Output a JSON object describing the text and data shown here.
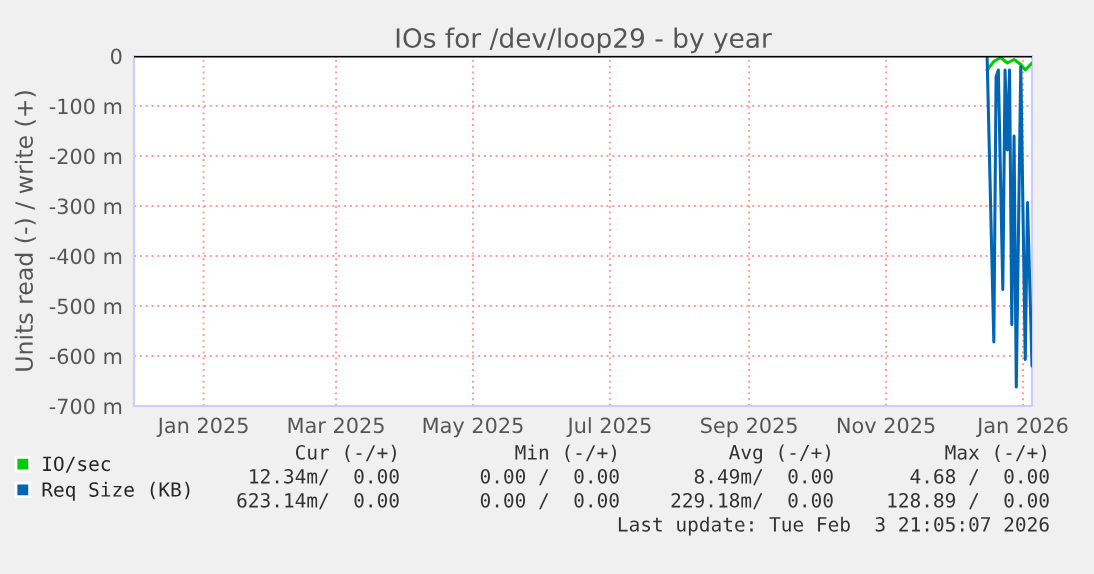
{
  "chart_data": {
    "type": "line",
    "title": "IOs for /dev/loop29 - by year",
    "ylabel": "Units read (-) / write (+)",
    "xlim": [
      "2024-12-01",
      "2026-01-05"
    ],
    "xticks": [
      {
        "value": "2025-01-01",
        "label": "Jan 2025"
      },
      {
        "value": "2025-03-01",
        "label": "Mar 2025"
      },
      {
        "value": "2025-05-01",
        "label": "May 2025"
      },
      {
        "value": "2025-07-01",
        "label": "Jul 2025"
      },
      {
        "value": "2025-09-01",
        "label": "Sep 2025"
      },
      {
        "value": "2025-11-01",
        "label": "Nov 2025"
      },
      {
        "value": "2026-01-01",
        "label": "Jan 2026"
      }
    ],
    "ylim": [
      -700,
      0
    ],
    "yticks": [
      {
        "value": 0,
        "label": "0"
      },
      {
        "value": -100,
        "label": "-100 m"
      },
      {
        "value": -200,
        "label": "-200 m"
      },
      {
        "value": -300,
        "label": "-300 m"
      },
      {
        "value": -400,
        "label": "-400 m"
      },
      {
        "value": -500,
        "label": "-500 m"
      },
      {
        "value": -600,
        "label": "-600 m"
      },
      {
        "value": -700,
        "label": "-700 m"
      }
    ],
    "grid": true,
    "legend": "bottom left",
    "ref_lines": [
      {
        "axis": "y",
        "value": 0,
        "color": "#000000"
      }
    ],
    "series": [
      {
        "name": "IO/sec",
        "color": "#00cc00",
        "x": [
          "2025-12-16",
          "2025-12-19",
          "2025-12-22",
          "2025-12-25",
          "2025-12-28",
          "2025-12-31",
          "2026-01-02",
          "2026-01-05"
        ],
        "values": [
          -28,
          -11,
          -3,
          -14,
          -7,
          -17,
          -28,
          -14
        ]
      },
      {
        "name": "Req Size (KB)",
        "color": "#0066b3",
        "x": [
          "2025-12-16",
          "2025-12-19",
          "2025-12-20",
          "2025-12-21",
          "2025-12-23",
          "2025-12-24",
          "2025-12-25",
          "2025-12-26",
          "2025-12-27",
          "2025-12-28",
          "2025-12-29",
          "2025-12-31",
          "2026-01-02",
          "2026-01-03",
          "2026-01-05"
        ],
        "values": [
          0,
          -572,
          -42,
          -28,
          -467,
          -28,
          -188,
          -28,
          -537,
          -160,
          -662,
          -21,
          -607,
          -293,
          -620
        ]
      }
    ],
    "annotations": [
      "Cur (-/+)",
      "Min (-/+)",
      "Avg (-/+)",
      "Max (-/+)",
      "12.34m/  0.00",
      "0.00 /  0.00",
      "8.49m/  0.00",
      "4.68 /  0.00",
      "623.14m/  0.00",
      "0.00 /  0.00",
      "229.18m/  0.00",
      "128.89 /  0.00",
      "Last update: Tue Feb  3 21:05:07 2026"
    ]
  }
}
